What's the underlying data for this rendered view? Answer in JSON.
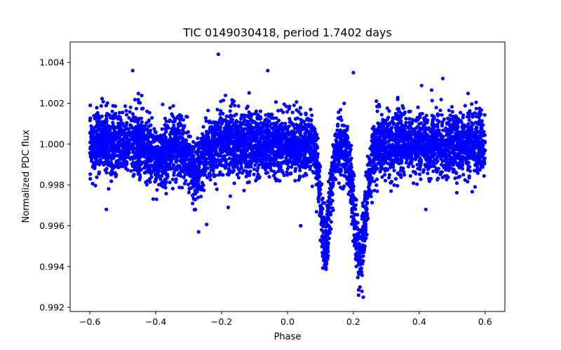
{
  "chart_data": {
    "type": "scatter",
    "title": "TIC 0149030418, period 1.7402 days",
    "xlabel": "Phase",
    "ylabel": "Normalized PDC flux",
    "xlim": [
      -0.66,
      0.66
    ],
    "ylim": [
      0.9918,
      1.005
    ],
    "xticks": [
      -0.6,
      -0.4,
      -0.2,
      0.0,
      0.2,
      0.4,
      0.6
    ],
    "xtick_labels": [
      "−0.6",
      "−0.4",
      "−0.2",
      "0.0",
      "0.2",
      "0.4",
      "0.6"
    ],
    "yticks": [
      0.992,
      0.994,
      0.996,
      0.998,
      1.0,
      1.002,
      1.004
    ],
    "ytick_labels": [
      "0.992",
      "0.994",
      "0.996",
      "0.998",
      "1.000",
      "1.002",
      "1.004"
    ],
    "series": [
      {
        "name": "flux",
        "color": "#0000ff",
        "phase_range": [
          -0.6,
          0.6
        ],
        "baseline": 1.0,
        "scatter_sigma": 0.00075,
        "dips": [
          {
            "center": -0.39,
            "depth": 0.0009,
            "width": 0.018
          },
          {
            "center": -0.28,
            "depth": 0.0015,
            "width": 0.02
          },
          {
            "center": 0.115,
            "depth": 0.005,
            "width": 0.014
          },
          {
            "center": 0.22,
            "depth": 0.0055,
            "width": 0.018
          }
        ],
        "outliers": [
          {
            "x": -0.21,
            "y": 1.0044
          },
          {
            "x": 0.23,
            "y": 0.9925
          },
          {
            "x": -0.55,
            "y": 0.9968
          },
          {
            "x": -0.27,
            "y": 0.9957
          },
          {
            "x": -0.18,
            "y": 0.9969
          },
          {
            "x": 0.04,
            "y": 0.996
          },
          {
            "x": -0.06,
            "y": 1.0036
          },
          {
            "x": 0.2,
            "y": 1.0035
          },
          {
            "x": 0.42,
            "y": 0.9968
          },
          {
            "x": -0.47,
            "y": 1.0036
          }
        ]
      }
    ]
  }
}
